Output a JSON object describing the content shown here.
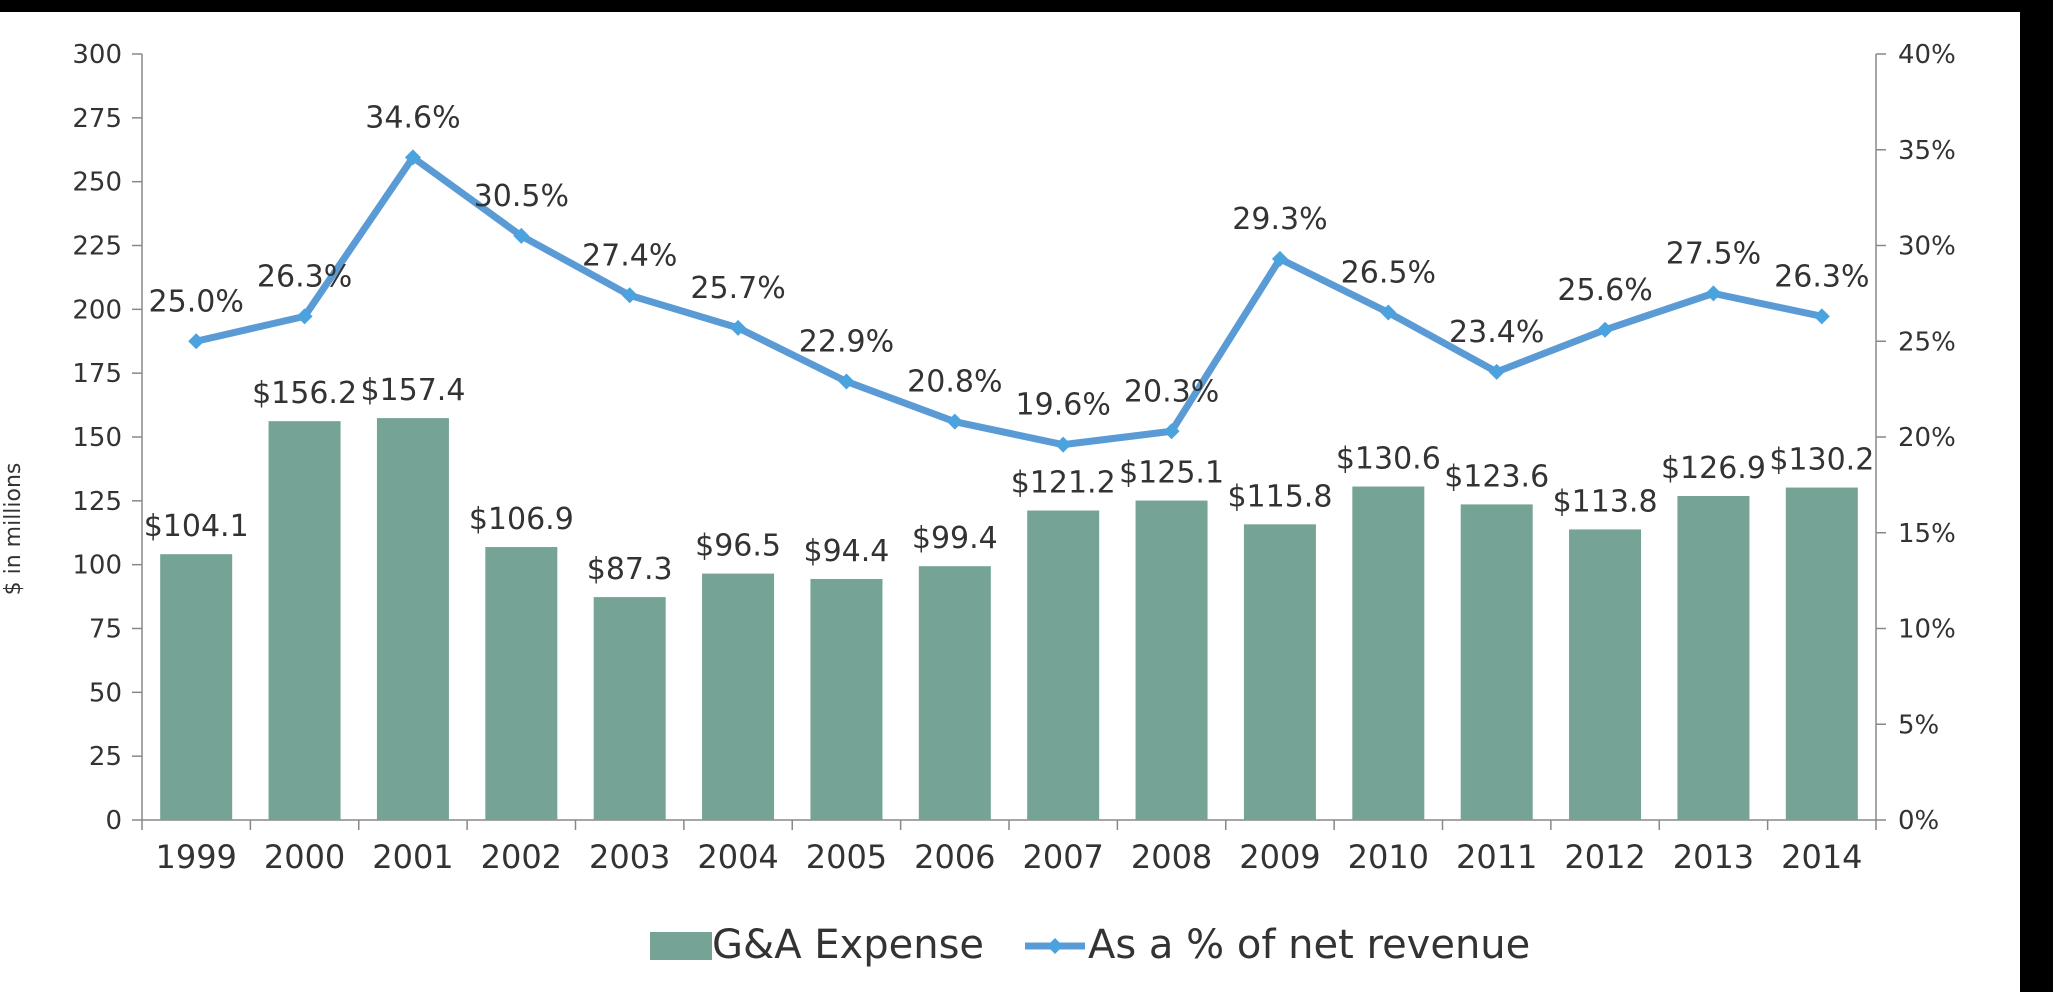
{
  "chart_data": {
    "type": "bar+line",
    "title": "",
    "ylabel": "$ in millions",
    "y2label": "",
    "categories": [
      "1999",
      "2000",
      "2001",
      "2002",
      "2003",
      "2004",
      "2005",
      "2006",
      "2007",
      "2008",
      "2009",
      "2010",
      "2011",
      "2012",
      "2013",
      "2014"
    ],
    "ylim": [
      0,
      300
    ],
    "yticks": [
      0,
      25,
      50,
      75,
      100,
      125,
      150,
      175,
      200,
      225,
      250,
      275,
      300
    ],
    "y2lim": [
      0,
      40
    ],
    "y2ticks": [
      "0%",
      "5%",
      "10%",
      "15%",
      "20%",
      "25%",
      "30%",
      "35%",
      "40%"
    ],
    "series": [
      {
        "name": "G&A Expense",
        "type": "bar",
        "axis": "left",
        "color": "#75a396",
        "values": [
          104.1,
          156.2,
          157.4,
          106.9,
          87.3,
          96.5,
          94.4,
          99.4,
          121.2,
          125.1,
          115.8,
          130.6,
          123.6,
          113.8,
          126.9,
          130.2
        ],
        "labels": [
          "$104.1",
          "$156.2",
          "$157.4",
          "$106.9",
          "$87.3",
          "$96.5",
          "$94.4",
          "$99.4",
          "$121.2",
          "$125.1",
          "$115.8",
          "$130.6",
          "$123.6",
          "$113.8",
          "$126.9",
          "$130.2"
        ]
      },
      {
        "name": "As a % of net revenue",
        "type": "line",
        "axis": "right",
        "color": "#5b9bd5",
        "values": [
          25.0,
          26.3,
          34.6,
          30.5,
          27.4,
          25.7,
          22.9,
          20.8,
          19.6,
          20.3,
          29.3,
          26.5,
          23.4,
          25.6,
          27.5,
          26.3
        ],
        "labels": [
          "25.0%",
          "26.3%",
          "34.6%",
          "30.5%",
          "27.4%",
          "25.7%",
          "22.9%",
          "20.8%",
          "19.6%",
          "20.3%",
          "29.3%",
          "26.5%",
          "23.4%",
          "25.6%",
          "27.5%",
          "26.3%"
        ]
      }
    ],
    "legend": "bottom",
    "grid": false
  }
}
